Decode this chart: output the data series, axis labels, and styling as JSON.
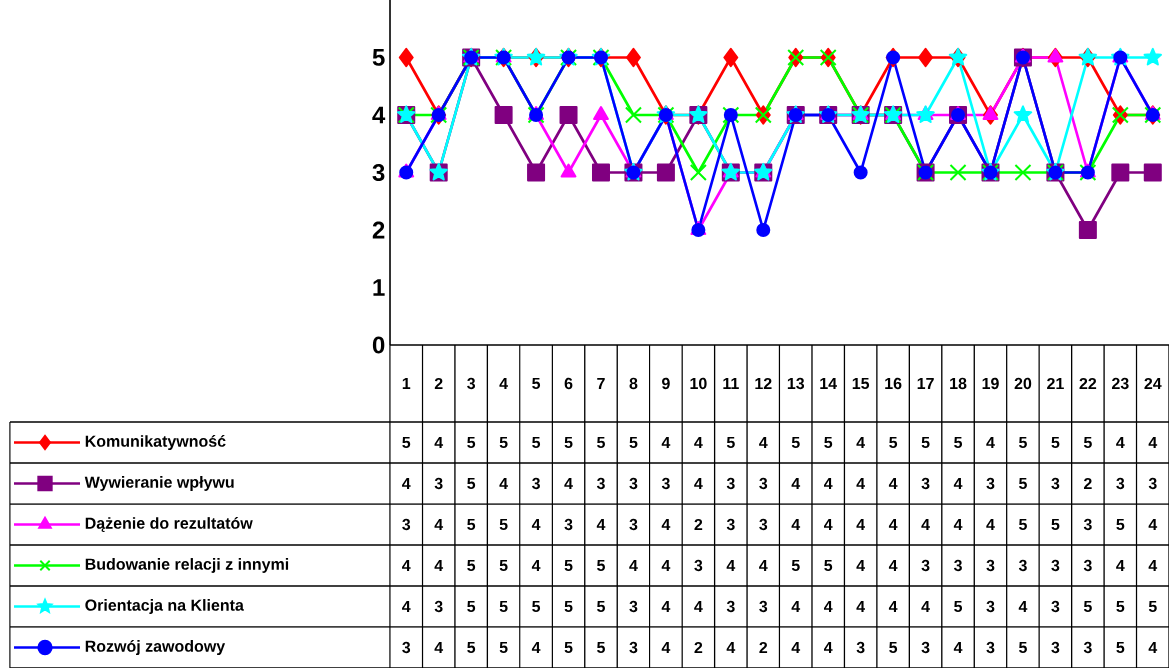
{
  "chart_data": {
    "type": "line",
    "categories": [
      "1",
      "2",
      "3",
      "4",
      "5",
      "6",
      "7",
      "8",
      "9",
      "10",
      "11",
      "12",
      "13",
      "14",
      "15",
      "16",
      "17",
      "18",
      "19",
      "20",
      "21",
      "22",
      "23",
      "24"
    ],
    "series": [
      {
        "name": "Komunikatywność",
        "color": "#ff0000",
        "marker": "diamond",
        "values": [
          5,
          4,
          5,
          5,
          5,
          5,
          5,
          5,
          4,
          4,
          5,
          4,
          5,
          5,
          4,
          5,
          5,
          5,
          4,
          5,
          5,
          5,
          4,
          4
        ]
      },
      {
        "name": "Wywieranie wpływu",
        "color": "#800080",
        "marker": "square",
        "values": [
          4,
          3,
          5,
          4,
          3,
          4,
          3,
          3,
          3,
          4,
          3,
          3,
          4,
          4,
          4,
          4,
          3,
          4,
          3,
          5,
          3,
          2,
          3,
          3
        ]
      },
      {
        "name": "Dążenie do rezultatów",
        "color": "#ff00ff",
        "marker": "triangle",
        "values": [
          3,
          4,
          5,
          5,
          4,
          3,
          4,
          3,
          4,
          2,
          3,
          3,
          4,
          4,
          4,
          4,
          4,
          4,
          4,
          5,
          5,
          3,
          5,
          4
        ]
      },
      {
        "name": "Budowanie relacji z innymi",
        "color": "#00ff00",
        "marker": "cross",
        "values": [
          4,
          4,
          5,
          5,
          4,
          5,
          5,
          4,
          4,
          3,
          4,
          4,
          5,
          5,
          4,
          4,
          3,
          3,
          3,
          3,
          3,
          3,
          4,
          4
        ]
      },
      {
        "name": "Orientacja na Klienta",
        "color": "#00ffff",
        "marker": "star",
        "values": [
          4,
          3,
          5,
          5,
          5,
          5,
          5,
          3,
          4,
          4,
          3,
          3,
          4,
          4,
          4,
          4,
          4,
          5,
          3,
          4,
          3,
          5,
          5,
          5
        ]
      },
      {
        "name": "Rozwój zawodowy",
        "color": "#0000ff",
        "marker": "circle",
        "values": [
          3,
          4,
          5,
          5,
          4,
          5,
          5,
          3,
          4,
          2,
          4,
          2,
          4,
          4,
          3,
          5,
          3,
          4,
          3,
          5,
          3,
          3,
          5,
          4
        ]
      }
    ],
    "ylim": [
      0,
      6
    ],
    "yticks": [
      0,
      1,
      2,
      3,
      4,
      5
    ],
    "grid": false,
    "legend": "bottom",
    "data_labels": true,
    "line_style": "solid"
  }
}
